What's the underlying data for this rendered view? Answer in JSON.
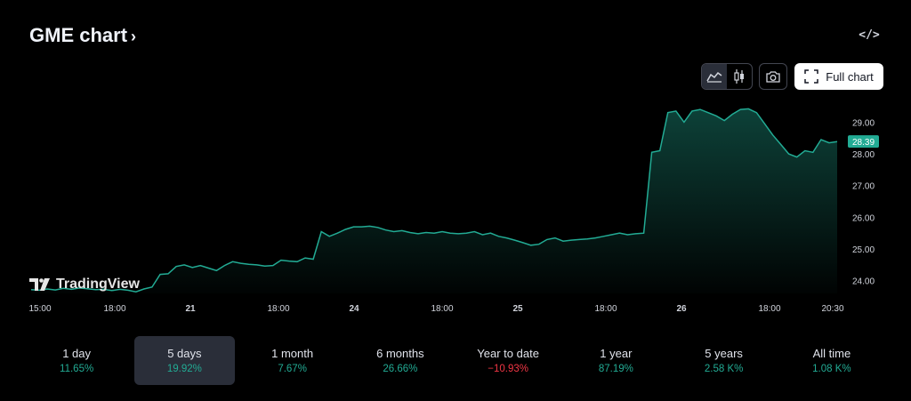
{
  "header": {
    "title": "GME chart",
    "chevron": "›",
    "embed_label": "</>"
  },
  "toolbar": {
    "line_icon": "area-chart-icon",
    "candle_icon": "candles-icon",
    "snapshot_icon": "camera-icon",
    "full_chart_label": "Full chart"
  },
  "brand": {
    "name": "TradingView"
  },
  "colors": {
    "line": "#22ab94",
    "price_badge": "#22ab94",
    "up": "#22ab94",
    "down": "#f23645"
  },
  "chart_data": {
    "type": "area",
    "title": "",
    "xlabel": "",
    "ylabel": "",
    "ylim": [
      23.6,
      29.6
    ],
    "x_tick_labels": [
      "15:00",
      "18:00",
      "21",
      "18:00",
      "24",
      "18:00",
      "25",
      "18:00",
      "26",
      "18:00",
      "20:30"
    ],
    "y_ticks": [
      "24.00",
      "25.00",
      "26.00",
      "27.00",
      "28.00",
      "29.00"
    ],
    "last_price": "28.39",
    "series": [
      {
        "values": [
          23.72,
          23.7,
          23.74,
          23.71,
          23.76,
          23.73,
          23.77,
          23.75,
          23.72,
          23.73,
          23.69,
          23.73,
          23.7,
          23.65,
          23.74,
          23.8,
          24.2,
          24.22,
          24.45,
          24.5,
          24.42,
          24.48,
          24.4,
          24.32,
          24.48,
          24.6,
          24.55,
          24.52,
          24.5,
          24.46,
          24.48,
          24.65,
          24.62,
          24.6,
          24.72,
          24.68,
          25.55,
          25.4,
          25.5,
          25.62,
          25.7,
          25.7,
          25.72,
          25.68,
          25.6,
          25.55,
          25.58,
          25.52,
          25.48,
          25.52,
          25.5,
          25.55,
          25.5,
          25.48,
          25.5,
          25.55,
          25.45,
          25.5,
          25.4,
          25.35,
          25.28,
          25.2,
          25.12,
          25.15,
          25.3,
          25.35,
          25.25,
          25.28,
          25.3,
          25.32,
          25.35,
          25.4,
          25.45,
          25.5,
          25.45,
          25.48,
          25.5,
          28.05,
          28.1,
          29.3,
          29.35,
          29.0,
          29.35,
          29.4,
          29.3,
          29.2,
          29.05,
          29.25,
          29.4,
          29.42,
          29.3,
          28.95,
          28.6,
          28.3,
          28.0,
          27.9,
          28.1,
          28.05,
          28.45,
          28.35,
          28.39
        ]
      }
    ]
  },
  "ranges": [
    {
      "label": "1 day",
      "change": "11.65%",
      "dir": "up",
      "selected": false
    },
    {
      "label": "5 days",
      "change": "19.92%",
      "dir": "up",
      "selected": true
    },
    {
      "label": "1 month",
      "change": "7.67%",
      "dir": "up",
      "selected": false
    },
    {
      "label": "6 months",
      "change": "26.66%",
      "dir": "up",
      "selected": false
    },
    {
      "label": "Year to date",
      "change": "−10.93%",
      "dir": "down",
      "selected": false
    },
    {
      "label": "1 year",
      "change": "87.19%",
      "dir": "up",
      "selected": false
    },
    {
      "label": "5 years",
      "change": "2.58 K%",
      "dir": "up",
      "selected": false
    },
    {
      "label": "All time",
      "change": "1.08 K%",
      "dir": "up",
      "selected": false
    }
  ]
}
